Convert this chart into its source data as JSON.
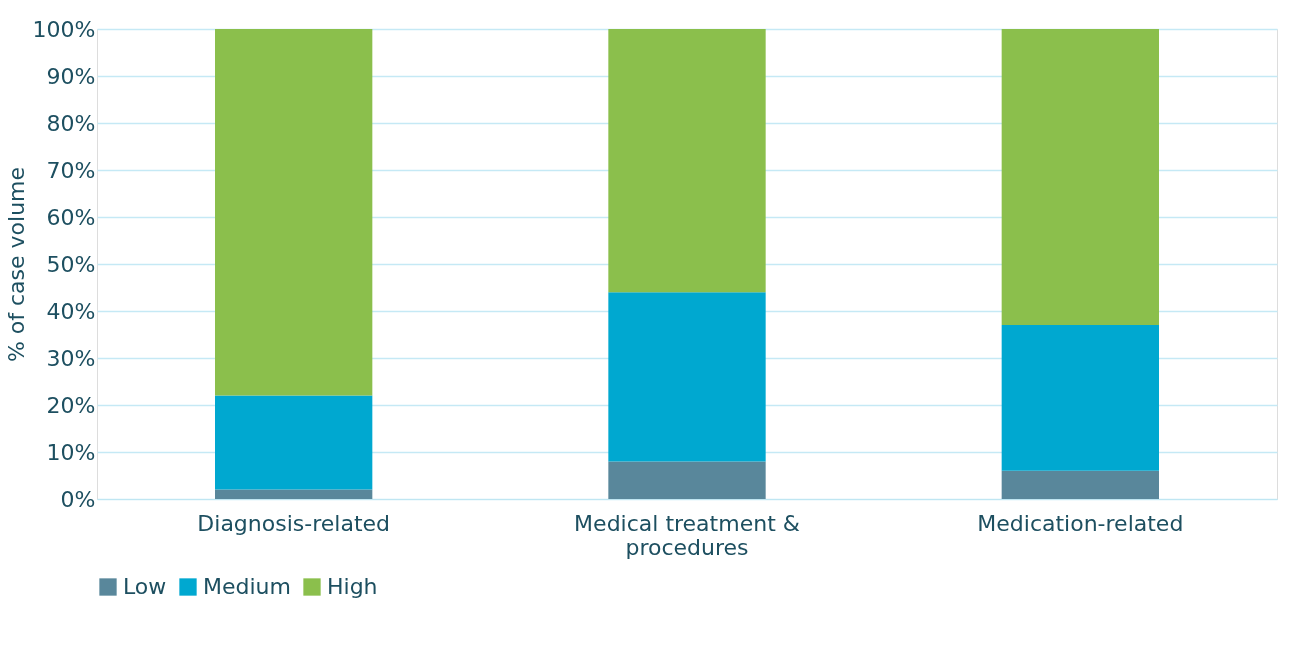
{
  "chart_data": {
    "type": "bar",
    "stacked": true,
    "ylabel": "% of case volume",
    "categories": [
      "Diagnosis-related",
      "Medical treatment & procedures",
      "Medication-related"
    ],
    "series": [
      {
        "name": "Low",
        "color": "#59879b",
        "values": [
          2,
          8,
          6
        ]
      },
      {
        "name": "Medium",
        "color": "#00a8d0",
        "values": [
          20,
          36,
          31
        ]
      },
      {
        "name": "High",
        "color": "#8bbf4c",
        "values": [
          78,
          56,
          63
        ]
      }
    ],
    "ylim": [
      0,
      100
    ],
    "yticks": [
      {
        "value": 0,
        "label": "0%"
      },
      {
        "value": 10,
        "label": "10%"
      },
      {
        "value": 20,
        "label": "20%"
      },
      {
        "value": 30,
        "label": "30%"
      },
      {
        "value": 40,
        "label": "40%"
      },
      {
        "value": 50,
        "label": "50%"
      },
      {
        "value": 60,
        "label": "60%"
      },
      {
        "value": 70,
        "label": "70%"
      },
      {
        "value": 80,
        "label": "80%"
      },
      {
        "value": 90,
        "label": "90%"
      },
      {
        "value": 100,
        "label": "100%"
      }
    ],
    "grid": "y",
    "legend": "bottom"
  }
}
